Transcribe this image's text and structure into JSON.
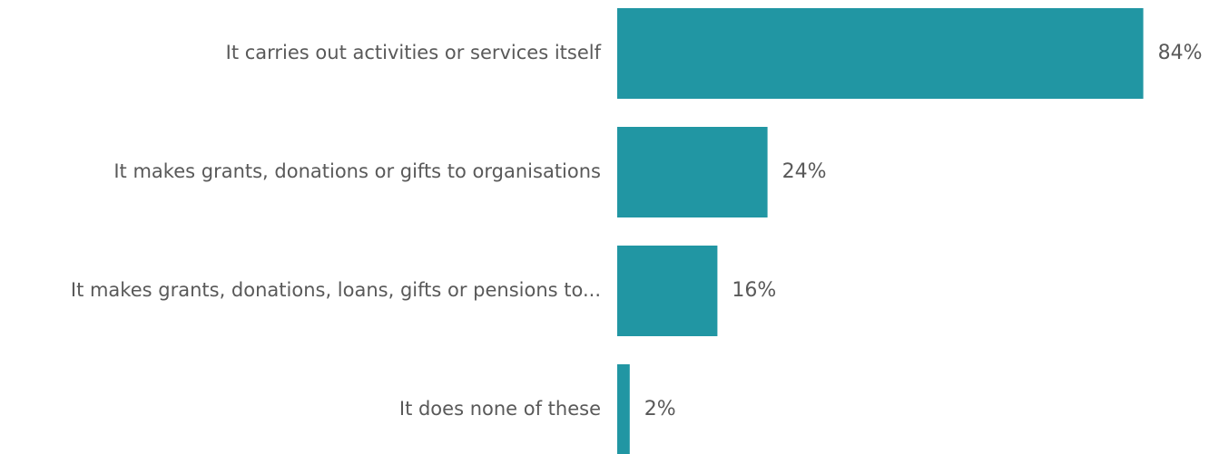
{
  "chart_data": {
    "type": "bar",
    "orientation": "horizontal",
    "categories": [
      "It carries out activities or services itself",
      "It makes grants, donations or gifts to organisations",
      "It makes grants, donations, loans, gifts or pensions to...",
      "It does none of these"
    ],
    "values": [
      84,
      24,
      16,
      2
    ],
    "value_labels": [
      "84%",
      "24%",
      "16%",
      "2%"
    ],
    "unit": "%",
    "xlim": [
      0,
      100
    ],
    "grid": false,
    "legend": "none",
    "bar_color": "#2196A3"
  }
}
